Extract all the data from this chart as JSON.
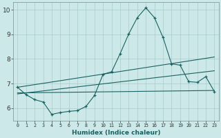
{
  "title": "",
  "xlabel": "Humidex (Indice chaleur)",
  "xlim": [
    -0.5,
    23.5
  ],
  "ylim": [
    5.5,
    10.3
  ],
  "yticks": [
    6,
    7,
    8,
    9,
    10
  ],
  "xticks": [
    0,
    1,
    2,
    3,
    4,
    5,
    6,
    7,
    8,
    9,
    10,
    11,
    12,
    13,
    14,
    15,
    16,
    17,
    18,
    19,
    20,
    21,
    22,
    23
  ],
  "bg_color": "#cce8e8",
  "grid_color": "#aacccc",
  "line_color": "#1a6060",
  "line1_x": [
    0,
    1,
    2,
    3,
    4,
    5,
    6,
    7,
    8,
    9,
    10,
    11,
    12,
    13,
    14,
    15,
    16,
    17,
    18,
    19,
    20,
    21,
    22,
    23
  ],
  "line1_y": [
    6.85,
    6.55,
    6.35,
    6.25,
    5.75,
    5.82,
    5.87,
    5.9,
    6.07,
    6.52,
    7.38,
    7.48,
    8.22,
    9.02,
    9.68,
    10.08,
    9.68,
    8.88,
    7.8,
    7.75,
    7.08,
    7.05,
    7.28,
    6.68
  ],
  "line2_x": [
    0,
    23
  ],
  "line2_y": [
    6.62,
    6.72
  ],
  "line3_x": [
    0,
    23
  ],
  "line3_y": [
    6.58,
    7.52
  ],
  "line4_x": [
    0,
    23
  ],
  "line4_y": [
    6.85,
    8.08
  ]
}
